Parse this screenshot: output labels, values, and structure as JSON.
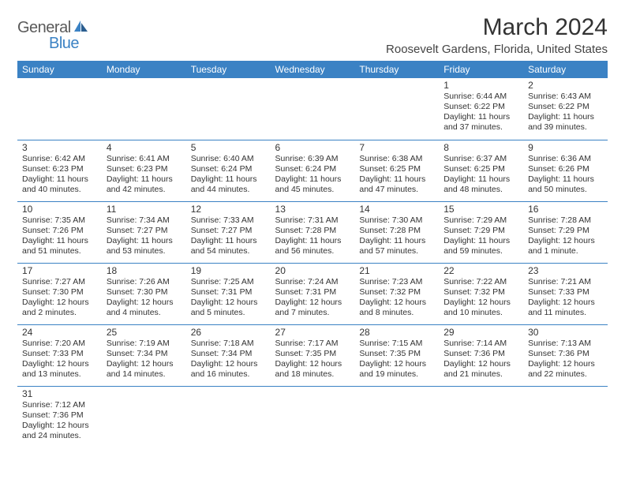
{
  "logo": {
    "text_general": "General",
    "text_blue": "Blue",
    "accent_color": "#3b82c4"
  },
  "title": "March 2024",
  "location": "Roosevelt Gardens, Florida, United States",
  "colors": {
    "header_bg": "#3b82c4",
    "header_text": "#ffffff",
    "border": "#3b82c4",
    "text": "#333333"
  },
  "weekdays": [
    "Sunday",
    "Monday",
    "Tuesday",
    "Wednesday",
    "Thursday",
    "Friday",
    "Saturday"
  ],
  "weeks": [
    [
      null,
      null,
      null,
      null,
      null,
      {
        "n": "1",
        "sunrise": "6:44 AM",
        "sunset": "6:22 PM",
        "daylight": "11 hours and 37 minutes."
      },
      {
        "n": "2",
        "sunrise": "6:43 AM",
        "sunset": "6:22 PM",
        "daylight": "11 hours and 39 minutes."
      }
    ],
    [
      {
        "n": "3",
        "sunrise": "6:42 AM",
        "sunset": "6:23 PM",
        "daylight": "11 hours and 40 minutes."
      },
      {
        "n": "4",
        "sunrise": "6:41 AM",
        "sunset": "6:23 PM",
        "daylight": "11 hours and 42 minutes."
      },
      {
        "n": "5",
        "sunrise": "6:40 AM",
        "sunset": "6:24 PM",
        "daylight": "11 hours and 44 minutes."
      },
      {
        "n": "6",
        "sunrise": "6:39 AM",
        "sunset": "6:24 PM",
        "daylight": "11 hours and 45 minutes."
      },
      {
        "n": "7",
        "sunrise": "6:38 AM",
        "sunset": "6:25 PM",
        "daylight": "11 hours and 47 minutes."
      },
      {
        "n": "8",
        "sunrise": "6:37 AM",
        "sunset": "6:25 PM",
        "daylight": "11 hours and 48 minutes."
      },
      {
        "n": "9",
        "sunrise": "6:36 AM",
        "sunset": "6:26 PM",
        "daylight": "11 hours and 50 minutes."
      }
    ],
    [
      {
        "n": "10",
        "sunrise": "7:35 AM",
        "sunset": "7:26 PM",
        "daylight": "11 hours and 51 minutes."
      },
      {
        "n": "11",
        "sunrise": "7:34 AM",
        "sunset": "7:27 PM",
        "daylight": "11 hours and 53 minutes."
      },
      {
        "n": "12",
        "sunrise": "7:33 AM",
        "sunset": "7:27 PM",
        "daylight": "11 hours and 54 minutes."
      },
      {
        "n": "13",
        "sunrise": "7:31 AM",
        "sunset": "7:28 PM",
        "daylight": "11 hours and 56 minutes."
      },
      {
        "n": "14",
        "sunrise": "7:30 AM",
        "sunset": "7:28 PM",
        "daylight": "11 hours and 57 minutes."
      },
      {
        "n": "15",
        "sunrise": "7:29 AM",
        "sunset": "7:29 PM",
        "daylight": "11 hours and 59 minutes."
      },
      {
        "n": "16",
        "sunrise": "7:28 AM",
        "sunset": "7:29 PM",
        "daylight": "12 hours and 1 minute."
      }
    ],
    [
      {
        "n": "17",
        "sunrise": "7:27 AM",
        "sunset": "7:30 PM",
        "daylight": "12 hours and 2 minutes."
      },
      {
        "n": "18",
        "sunrise": "7:26 AM",
        "sunset": "7:30 PM",
        "daylight": "12 hours and 4 minutes."
      },
      {
        "n": "19",
        "sunrise": "7:25 AM",
        "sunset": "7:31 PM",
        "daylight": "12 hours and 5 minutes."
      },
      {
        "n": "20",
        "sunrise": "7:24 AM",
        "sunset": "7:31 PM",
        "daylight": "12 hours and 7 minutes."
      },
      {
        "n": "21",
        "sunrise": "7:23 AM",
        "sunset": "7:32 PM",
        "daylight": "12 hours and 8 minutes."
      },
      {
        "n": "22",
        "sunrise": "7:22 AM",
        "sunset": "7:32 PM",
        "daylight": "12 hours and 10 minutes."
      },
      {
        "n": "23",
        "sunrise": "7:21 AM",
        "sunset": "7:33 PM",
        "daylight": "12 hours and 11 minutes."
      }
    ],
    [
      {
        "n": "24",
        "sunrise": "7:20 AM",
        "sunset": "7:33 PM",
        "daylight": "12 hours and 13 minutes."
      },
      {
        "n": "25",
        "sunrise": "7:19 AM",
        "sunset": "7:34 PM",
        "daylight": "12 hours and 14 minutes."
      },
      {
        "n": "26",
        "sunrise": "7:18 AM",
        "sunset": "7:34 PM",
        "daylight": "12 hours and 16 minutes."
      },
      {
        "n": "27",
        "sunrise": "7:17 AM",
        "sunset": "7:35 PM",
        "daylight": "12 hours and 18 minutes."
      },
      {
        "n": "28",
        "sunrise": "7:15 AM",
        "sunset": "7:35 PM",
        "daylight": "12 hours and 19 minutes."
      },
      {
        "n": "29",
        "sunrise": "7:14 AM",
        "sunset": "7:36 PM",
        "daylight": "12 hours and 21 minutes."
      },
      {
        "n": "30",
        "sunrise": "7:13 AM",
        "sunset": "7:36 PM",
        "daylight": "12 hours and 22 minutes."
      }
    ],
    [
      {
        "n": "31",
        "sunrise": "7:12 AM",
        "sunset": "7:36 PM",
        "daylight": "12 hours and 24 minutes."
      },
      null,
      null,
      null,
      null,
      null,
      null
    ]
  ],
  "labels": {
    "sunrise": "Sunrise:",
    "sunset": "Sunset:",
    "daylight": "Daylight:"
  }
}
